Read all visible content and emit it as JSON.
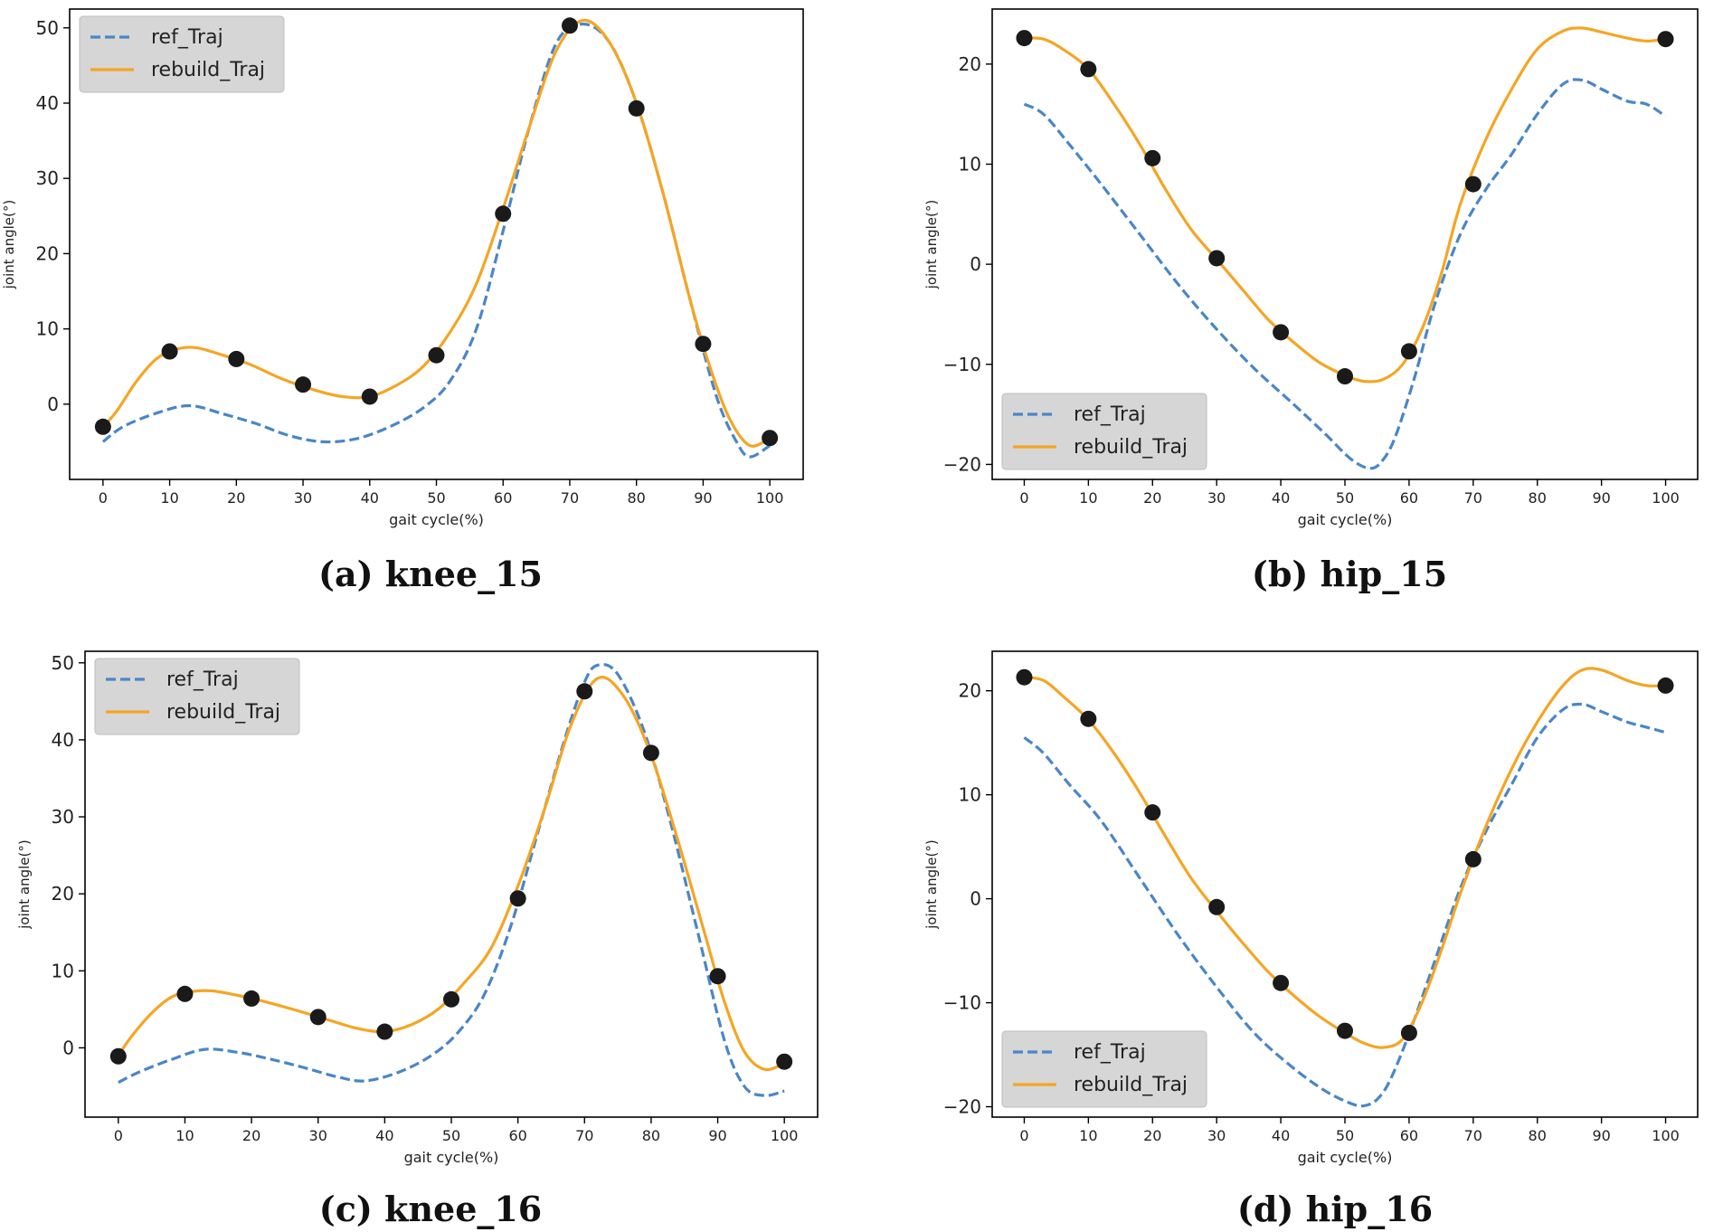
{
  "legend": {
    "ref": "ref_Traj",
    "rebuild": "rebuild_Traj"
  },
  "colors": {
    "ref": "#4a86c8",
    "rebuild": "#f5a524",
    "marker": "#1a1a1a",
    "legend_bg": "#d6d6d6"
  },
  "chart_data": [
    {
      "type": "line",
      "caption": "(a) knee_15",
      "xlabel": "gait cycle(%)",
      "ylabel": "joint angle(°)",
      "xlim": [
        -5,
        105
      ],
      "ylim": [
        -10,
        52.5
      ],
      "xticks": [
        0,
        10,
        20,
        30,
        40,
        50,
        60,
        70,
        80,
        90,
        100
      ],
      "yticks": [
        0,
        10,
        20,
        30,
        40,
        50
      ],
      "legend_position": "upper-left",
      "series": [
        {
          "name": "ref_Traj",
          "style": "dashed",
          "x": [
            0,
            3,
            8,
            13,
            18,
            23,
            28,
            33,
            38,
            43,
            48,
            52,
            56,
            60,
            64,
            68,
            72,
            76,
            80,
            84,
            88,
            92,
            95,
            97,
            100
          ],
          "y": [
            -5,
            -3,
            -1.2,
            -0.2,
            -1.3,
            -2.6,
            -4.2,
            -5,
            -4.6,
            -3,
            -0.5,
            3,
            10,
            23,
            37,
            48,
            50.5,
            48,
            40,
            28,
            14,
            1,
            -5,
            -7,
            -5.5
          ]
        },
        {
          "name": "rebuild_Traj",
          "style": "solid",
          "x": [
            0,
            2,
            5,
            8,
            11,
            14,
            18,
            22,
            27,
            32,
            36,
            40,
            44,
            48,
            52,
            56,
            60,
            64,
            68,
            72,
            76,
            80,
            84,
            88,
            91,
            94,
            97,
            100
          ],
          "y": [
            -3,
            -1,
            3,
            6,
            7.3,
            7.5,
            6.5,
            5.3,
            3.3,
            1.8,
            1,
            1,
            2.5,
            5,
            9.5,
            16,
            26,
            37,
            47,
            51,
            48,
            40,
            28,
            14,
            5,
            -2,
            -5.5,
            -4.5
          ]
        },
        {
          "name": "points",
          "style": "markers",
          "x": [
            0,
            10,
            20,
            30,
            40,
            50,
            60,
            70,
            80,
            90,
            100
          ],
          "y": [
            -3,
            7,
            6,
            2.6,
            1,
            6.5,
            25.3,
            50.3,
            39.3,
            8,
            -4.5
          ]
        }
      ]
    },
    {
      "type": "line",
      "caption": "(b) hip_15",
      "xlabel": "gait cycle(%)",
      "ylabel": "joint angle(°)",
      "xlim": [
        -5,
        105
      ],
      "ylim": [
        -21.5,
        25.5
      ],
      "xticks": [
        0,
        10,
        20,
        30,
        40,
        50,
        60,
        70,
        80,
        90,
        100
      ],
      "yticks": [
        -20,
        -10,
        0,
        10,
        20
      ],
      "legend_position": "lower-left",
      "series": [
        {
          "name": "ref_Traj",
          "style": "dashed",
          "x": [
            0,
            3,
            7,
            12,
            18,
            24,
            30,
            36,
            42,
            47,
            51,
            54,
            56,
            58,
            61,
            64,
            68,
            72,
            76,
            80,
            84,
            87,
            90,
            94,
            97,
            100
          ],
          "y": [
            16,
            15,
            12,
            8,
            3,
            -2,
            -6.5,
            -10.5,
            -14,
            -17,
            -19.5,
            -20.4,
            -19.5,
            -17,
            -11,
            -4,
            3,
            7.5,
            11,
            15,
            18,
            18.4,
            17.5,
            16.3,
            16,
            14.8
          ]
        },
        {
          "name": "rebuild_Traj",
          "style": "solid",
          "x": [
            0,
            3,
            6,
            10,
            14,
            18,
            22,
            26,
            30,
            34,
            38,
            42,
            46,
            50,
            53,
            56,
            59,
            62,
            65,
            68,
            72,
            76,
            80,
            84,
            87,
            90,
            94,
            97,
            100
          ],
          "y": [
            22.6,
            22.5,
            21.5,
            19.5,
            16,
            12,
            7.5,
            3.5,
            0.5,
            -2.5,
            -5.5,
            -7.8,
            -9.8,
            -11.1,
            -11.7,
            -11.5,
            -10,
            -6.5,
            -1,
            6,
            12.5,
            17.5,
            21.5,
            23.3,
            23.6,
            23.2,
            22.6,
            22.3,
            22.5
          ]
        },
        {
          "name": "points",
          "style": "markers",
          "x": [
            0,
            10,
            20,
            30,
            40,
            50,
            60,
            70,
            100
          ],
          "y": [
            22.6,
            19.5,
            10.6,
            0.6,
            -6.8,
            -11.2,
            -8.7,
            8,
            22.5
          ]
        }
      ]
    },
    {
      "type": "line",
      "caption": "(c) knee_16",
      "xlabel": "gait cycle(%)",
      "ylabel": "joint angle(°)",
      "xlim": [
        -5,
        105
      ],
      "ylim": [
        -9,
        51.5
      ],
      "xticks": [
        0,
        10,
        20,
        30,
        40,
        50,
        60,
        70,
        80,
        90,
        100
      ],
      "yticks": [
        0,
        10,
        20,
        30,
        40,
        50
      ],
      "legend_position": "upper-left",
      "series": [
        {
          "name": "ref_Traj",
          "style": "dashed",
          "x": [
            0,
            3,
            8,
            13,
            18,
            23,
            28,
            33,
            37,
            42,
            47,
            51,
            55,
            59,
            63,
            67,
            70,
            72,
            75,
            79,
            83,
            87,
            91,
            94,
            97,
            100
          ],
          "y": [
            -4.5,
            -3.2,
            -1.5,
            -0.2,
            -0.6,
            -1.5,
            -2.6,
            -3.8,
            -4.3,
            -3.2,
            -1,
            2,
            7,
            16,
            28,
            40,
            47.5,
            49.7,
            48.5,
            41,
            29,
            15,
            1,
            -5,
            -6.2,
            -5.6
          ]
        },
        {
          "name": "rebuild_Traj",
          "style": "solid",
          "x": [
            0,
            2,
            5,
            8,
            11,
            14,
            18,
            22,
            27,
            32,
            36,
            40,
            44,
            48,
            52,
            56,
            60,
            64,
            68,
            72,
            76,
            80,
            84,
            88,
            91,
            94,
            97,
            100
          ],
          "y": [
            -1,
            1.5,
            4.5,
            6.6,
            7.3,
            7.4,
            6.8,
            6,
            4.8,
            3.5,
            2.5,
            2.1,
            3,
            5,
            8.5,
            13,
            21,
            31,
            42,
            48,
            45.5,
            38,
            27,
            15,
            6,
            -0.5,
            -2.8,
            -2
          ]
        },
        {
          "name": "points",
          "style": "markers",
          "x": [
            0,
            10,
            20,
            30,
            40,
            50,
            60,
            70,
            80,
            90,
            100
          ],
          "y": [
            -1.1,
            7,
            6.4,
            4,
            2.1,
            6.3,
            19.4,
            46.3,
            38.3,
            9.3,
            -1.8
          ]
        }
      ]
    },
    {
      "type": "line",
      "caption": "(d) hip_16",
      "xlabel": "gait cycle(%)",
      "ylabel": "joint angle(°)",
      "xlim": [
        -5,
        105
      ],
      "ylim": [
        -21,
        23.8
      ],
      "xticks": [
        0,
        10,
        20,
        30,
        40,
        50,
        60,
        70,
        80,
        90,
        100
      ],
      "yticks": [
        -20,
        -10,
        0,
        10,
        20
      ],
      "legend_position": "lower-left",
      "series": [
        {
          "name": "ref_Traj",
          "style": "dashed",
          "x": [
            0,
            3,
            7,
            12,
            18,
            24,
            30,
            36,
            42,
            47,
            51,
            53,
            55,
            57,
            60,
            64,
            68,
            72,
            76,
            80,
            84,
            87,
            90,
            94,
            97,
            100
          ],
          "y": [
            15.5,
            14,
            11,
            7.5,
            2,
            -3.5,
            -8.5,
            -13,
            -16.3,
            -18.5,
            -19.7,
            -19.9,
            -19.3,
            -17.5,
            -13,
            -6,
            1,
            6.5,
            11,
            15.5,
            18.2,
            18.7,
            18,
            17,
            16.5,
            16
          ]
        },
        {
          "name": "rebuild_Traj",
          "style": "solid",
          "x": [
            0,
            3,
            6,
            10,
            14,
            18,
            22,
            26,
            30,
            34,
            38,
            42,
            46,
            50,
            53,
            56,
            59,
            62,
            65,
            68,
            72,
            76,
            80,
            84,
            87,
            90,
            94,
            97,
            100
          ],
          "y": [
            21.3,
            21,
            19.5,
            17.2,
            14,
            10.2,
            6,
            2,
            -1.2,
            -4.2,
            -7,
            -9.3,
            -11.3,
            -12.9,
            -13.9,
            -14.3,
            -13.5,
            -10,
            -5,
            0.5,
            7,
            12.5,
            17,
            20.5,
            22,
            22,
            21,
            20.5,
            20.5
          ]
        },
        {
          "name": "points",
          "style": "markers",
          "x": [
            0,
            10,
            20,
            30,
            40,
            50,
            60,
            70,
            100
          ],
          "y": [
            21.3,
            17.3,
            8.3,
            -0.8,
            -8.1,
            -12.7,
            -12.9,
            3.8,
            20.5
          ]
        }
      ]
    }
  ]
}
